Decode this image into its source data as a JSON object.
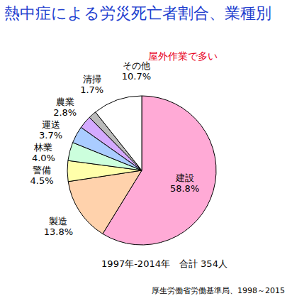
{
  "chart_data": {
    "type": "pie",
    "title": "熱中症による労災死亡者割合、業種別",
    "subtitle": "屋外作業で多い",
    "categories": [
      "建設",
      "製造",
      "警備",
      "林業",
      "運送",
      "農業",
      "清掃",
      "その他"
    ],
    "values": [
      58.8,
      13.8,
      4.5,
      4.0,
      3.7,
      2.8,
      1.7,
      10.7
    ],
    "value_labels": [
      "58.8%",
      "13.8%",
      "4.5%",
      "4.0%",
      "3.7%",
      "2.8%",
      "1.7%",
      "10.7%"
    ],
    "colors": [
      "#ffaad6",
      "#ffd2ac",
      "#ffffaa",
      "#ccffdd",
      "#aaccff",
      "#d4aaff",
      "#bbbbbb",
      "#ffffff"
    ],
    "data_labels": true,
    "annotations": [
      "1997年-2014年　合計 354人",
      "厚生労働省労働基準局、1998～2015"
    ]
  }
}
